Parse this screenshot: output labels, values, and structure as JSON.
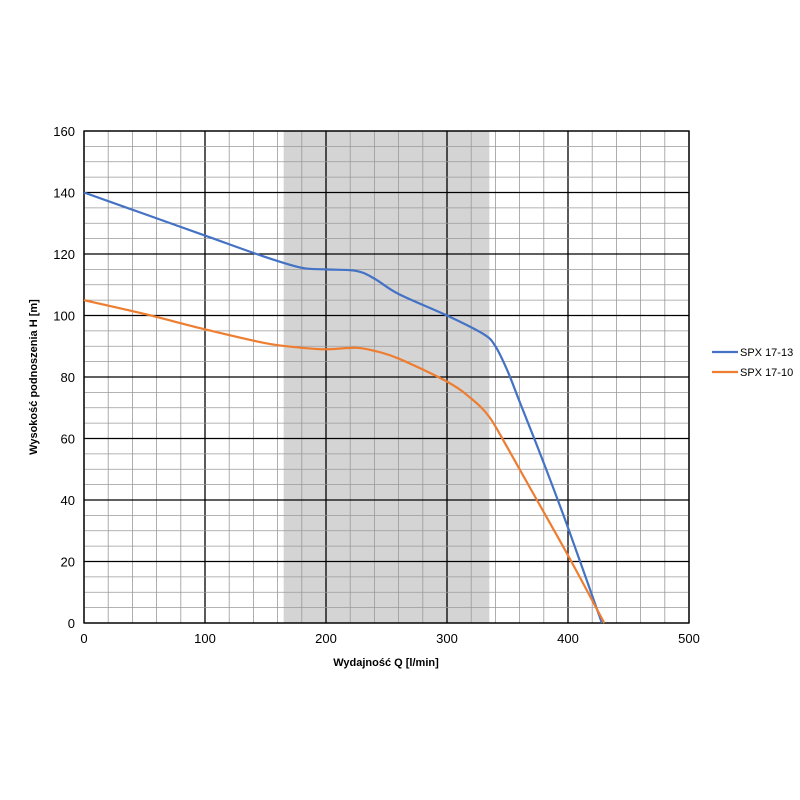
{
  "chart_data": {
    "type": "line",
    "xlabel": "Wydajność Q [l/min]",
    "ylabel": "Wysokość podnoszenia H [m]",
    "xlim": [
      0,
      500
    ],
    "ylim": [
      0,
      160
    ],
    "x_ticks": [
      0,
      100,
      200,
      300,
      400,
      500
    ],
    "y_ticks": [
      0,
      20,
      40,
      60,
      80,
      100,
      120,
      140,
      160
    ],
    "x_minor_step": 20,
    "y_minor_step": 5,
    "x_major_step": 100,
    "y_major_step": 20,
    "grid": true,
    "legend_position": "right",
    "shaded_region": {
      "x_from": 165,
      "x_to": 335,
      "color": "#d4d4d4"
    },
    "series": [
      {
        "name": "SPX 17-13",
        "color": "#4472c4",
        "x": [
          0,
          50,
          100,
          150,
          180,
          200,
          225,
          240,
          260,
          300,
          330,
          340,
          350,
          360,
          380,
          400,
          428
        ],
        "y": [
          140,
          133,
          126,
          119,
          115.5,
          115,
          114.5,
          112,
          107,
          100,
          94,
          90,
          82,
          72,
          52,
          31,
          0
        ]
      },
      {
        "name": "SPX 17-10",
        "color": "#ed7d31",
        "x": [
          0,
          50,
          100,
          150,
          180,
          200,
          225,
          240,
          260,
          300,
          320,
          335,
          350,
          370,
          400,
          430
        ],
        "y": [
          105,
          100.5,
          95.5,
          91,
          89.5,
          89,
          89.5,
          88.5,
          86,
          78.5,
          73,
          67,
          57,
          43,
          22,
          0
        ]
      }
    ]
  }
}
